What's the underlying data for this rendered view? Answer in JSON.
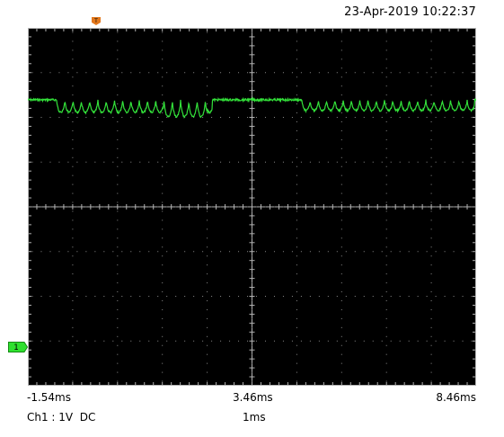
{
  "timestamp": "23-Apr-2019 10:22:37",
  "channel_marker": "1",
  "axis": {
    "left": "-1.54ms",
    "center": "3.46ms",
    "right": "8.46ms"
  },
  "status": {
    "channel_info": "Ch1 : 1V  DC",
    "timebase": "1ms"
  },
  "colors": {
    "trace": "#33e23a",
    "trigger_marker": "#e3781c",
    "channel_marker": "#2fe02f",
    "screen_bg": "#000000",
    "grid": "#b4b4b4"
  },
  "icons": {
    "trigger": "trigger-position-marker-icon",
    "channel": "channel-1-ground-marker-icon"
  }
}
